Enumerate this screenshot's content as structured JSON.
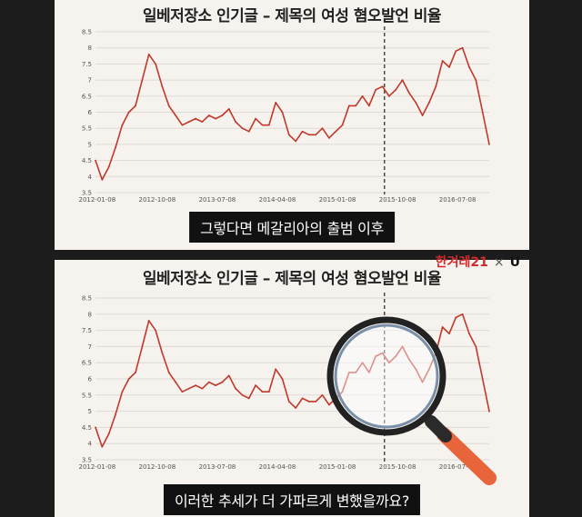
{
  "top_panel": {
    "title": "일베저장소 인기글 – 제목의 여성 혐오발언 비율",
    "caption": "그렇다면 메갈리아의 출범 이후"
  },
  "bottom_panel": {
    "title": "일베저장소 인기글 – 제목의 여성 혐오발언 비율",
    "caption": "이러한 추세가 더 가파르게 변했을까요?",
    "logo": {
      "left": "한겨레21",
      "sep": "×",
      "right": "U"
    }
  },
  "chart_data": [
    {
      "type": "line",
      "title": "일베저장소 인기글 – 제목의 여성 혐오발언 비율",
      "xlabel": "",
      "ylabel": "",
      "ylim": [
        3.5,
        8.5
      ],
      "yticks": [
        "3.5",
        "4",
        "4.5",
        "5",
        "5.5",
        "6",
        "6.5",
        "7",
        "7.5",
        "8",
        "8.5"
      ],
      "xticks": [
        "2012-01-08",
        "2012-10-08",
        "2013-07-08",
        "2014-04-08",
        "2015-01-08",
        "2015-10-08",
        "2016-07-08"
      ],
      "marker_x": "2015-08",
      "series": [
        {
          "color": "#c0392b",
          "x": [
            "2012-01",
            "2012-02",
            "2012-03",
            "2012-04",
            "2012-05",
            "2012-06",
            "2012-07",
            "2012-08",
            "2012-09",
            "2012-10",
            "2012-11",
            "2012-12",
            "2013-01",
            "2013-02",
            "2013-03",
            "2013-04",
            "2013-05",
            "2013-06",
            "2013-07",
            "2013-08",
            "2013-09",
            "2013-10",
            "2013-11",
            "2013-12",
            "2014-01",
            "2014-02",
            "2014-03",
            "2014-04",
            "2014-05",
            "2014-06",
            "2014-07",
            "2014-08",
            "2014-09",
            "2014-10",
            "2014-11",
            "2014-12",
            "2015-01",
            "2015-02",
            "2015-03",
            "2015-04",
            "2015-05",
            "2015-06",
            "2015-07",
            "2015-08",
            "2015-09",
            "2015-10",
            "2015-11",
            "2015-12",
            "2016-01",
            "2016-02",
            "2016-03",
            "2016-04",
            "2016-05",
            "2016-06",
            "2016-07",
            "2016-08",
            "2016-09",
            "2016-10",
            "2016-11",
            "2016-12"
          ],
          "values": [
            4.5,
            3.9,
            4.3,
            4.9,
            5.6,
            6.0,
            6.2,
            7.0,
            7.8,
            7.5,
            6.8,
            6.2,
            5.9,
            5.6,
            5.7,
            5.8,
            5.7,
            5.9,
            5.8,
            5.9,
            6.1,
            5.7,
            5.5,
            5.4,
            5.8,
            5.6,
            5.6,
            6.3,
            6.0,
            5.3,
            5.1,
            5.4,
            5.3,
            5.3,
            5.5,
            5.2,
            5.4,
            5.6,
            6.2,
            6.2,
            6.5,
            6.2,
            6.7,
            6.8,
            6.5,
            6.7,
            7.0,
            6.6,
            6.3,
            5.9,
            6.3,
            6.8,
            7.6,
            7.4,
            7.9,
            8.0,
            7.4,
            7.0,
            6.0,
            5.0
          ]
        }
      ]
    },
    {
      "type": "line",
      "title": "일베저장소 인기글 – 제목의 여성 혐오발언 비율",
      "xlabel": "",
      "ylabel": "",
      "ylim": [
        3.5,
        8.5
      ],
      "yticks": [
        "3.5",
        "4",
        "4.5",
        "5",
        "5.5",
        "6",
        "6.5",
        "7",
        "7.5",
        "8",
        "8.5"
      ],
      "xticks": [
        "2012-01-08",
        "2012-10-08",
        "2013-07-08",
        "2014-04-08",
        "2015-01-08",
        "2015-10-08",
        "2016-07-08"
      ],
      "marker_x": "2015-08",
      "series": [
        {
          "color": "#c0392b",
          "x": [
            "2012-01",
            "2012-02",
            "2012-03",
            "2012-04",
            "2012-05",
            "2012-06",
            "2012-07",
            "2012-08",
            "2012-09",
            "2012-10",
            "2012-11",
            "2012-12",
            "2013-01",
            "2013-02",
            "2013-03",
            "2013-04",
            "2013-05",
            "2013-06",
            "2013-07",
            "2013-08",
            "2013-09",
            "2013-10",
            "2013-11",
            "2013-12",
            "2014-01",
            "2014-02",
            "2014-03",
            "2014-04",
            "2014-05",
            "2014-06",
            "2014-07",
            "2014-08",
            "2014-09",
            "2014-10",
            "2014-11",
            "2014-12",
            "2015-01",
            "2015-02",
            "2015-03",
            "2015-04",
            "2015-05",
            "2015-06",
            "2015-07",
            "2015-08",
            "2015-09",
            "2015-10",
            "2015-11",
            "2015-12",
            "2016-01",
            "2016-02",
            "2016-03",
            "2016-04",
            "2016-05",
            "2016-06",
            "2016-07",
            "2016-08",
            "2016-09",
            "2016-10",
            "2016-11",
            "2016-12"
          ],
          "values": [
            4.5,
            3.9,
            4.3,
            4.9,
            5.6,
            6.0,
            6.2,
            7.0,
            7.8,
            7.5,
            6.8,
            6.2,
            5.9,
            5.6,
            5.7,
            5.8,
            5.7,
            5.9,
            5.8,
            5.9,
            6.1,
            5.7,
            5.5,
            5.4,
            5.8,
            5.6,
            5.6,
            6.3,
            6.0,
            5.3,
            5.1,
            5.4,
            5.3,
            5.3,
            5.5,
            5.2,
            5.4,
            5.6,
            6.2,
            6.2,
            6.5,
            6.2,
            6.7,
            6.8,
            6.5,
            6.7,
            7.0,
            6.6,
            6.3,
            5.9,
            6.3,
            6.8,
            7.6,
            7.4,
            7.9,
            8.0,
            7.4,
            7.0,
            6.0,
            5.0
          ]
        }
      ]
    }
  ],
  "overlay": {
    "icon": "magnifying-glass-icon",
    "handle_color": "#e8643a"
  }
}
